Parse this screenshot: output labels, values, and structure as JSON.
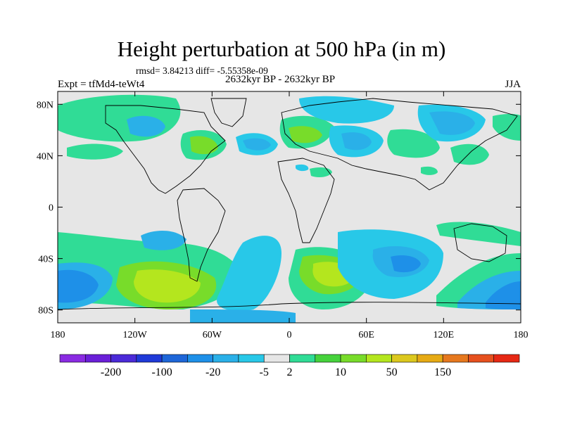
{
  "title": "Height perturbation at 500 hPa (in m)",
  "rmsd_line": "rmsd= 3.84213 diff= -5.55358e-09",
  "subtitle": "2632kyr BP - 2632kyr BP",
  "left_label": "Expt = tfMd4-teWt4",
  "right_label": "JJA",
  "x_ticks": [
    "180",
    "120W",
    "60W",
    "0",
    "60E",
    "120E",
    "180"
  ],
  "y_ticks": [
    "80N",
    "40N",
    "0",
    "40S",
    "80S"
  ],
  "colorbar": {
    "colors": [
      "#8a2be2",
      "#6a1fd8",
      "#4b2ad8",
      "#1f3ad8",
      "#1e66d8",
      "#1e90e8",
      "#2ab0e8",
      "#28c8e8",
      "#e6e6e6",
      "#30dc96",
      "#46d23c",
      "#78dc2a",
      "#b4e61e",
      "#dcc81e",
      "#e6aa14",
      "#e6781e",
      "#e6501e",
      "#e62814"
    ],
    "labels": [
      "-200",
      "-100",
      "-20",
      "-5",
      "2",
      "10",
      "50",
      "150"
    ]
  },
  "chart_data": {
    "type": "filled-contour-map",
    "variable": "500 hPa height perturbation",
    "units": "m",
    "projection": "cylindrical equidistant",
    "lon_range": [
      -180,
      180
    ],
    "lat_range": [
      -90,
      90
    ],
    "contour_levels": [
      -200,
      -150,
      -100,
      -50,
      -20,
      -10,
      -5,
      -2,
      2,
      5,
      10,
      20,
      50,
      100,
      150,
      200
    ],
    "features": [
      {
        "name": "south-pacific-high",
        "lon": -100,
        "lat": -55,
        "value": 20
      },
      {
        "name": "south-pacific-low",
        "lon": -165,
        "lat": -55,
        "value": -20
      },
      {
        "name": "south-atlantic-high",
        "lon": 30,
        "lat": -52,
        "value": 20
      },
      {
        "name": "indian-ocean-low",
        "lon": 90,
        "lat": -45,
        "value": -20
      },
      {
        "name": "drake-passage-low",
        "lon": -20,
        "lat": -60,
        "value": -10
      }
    ]
  }
}
